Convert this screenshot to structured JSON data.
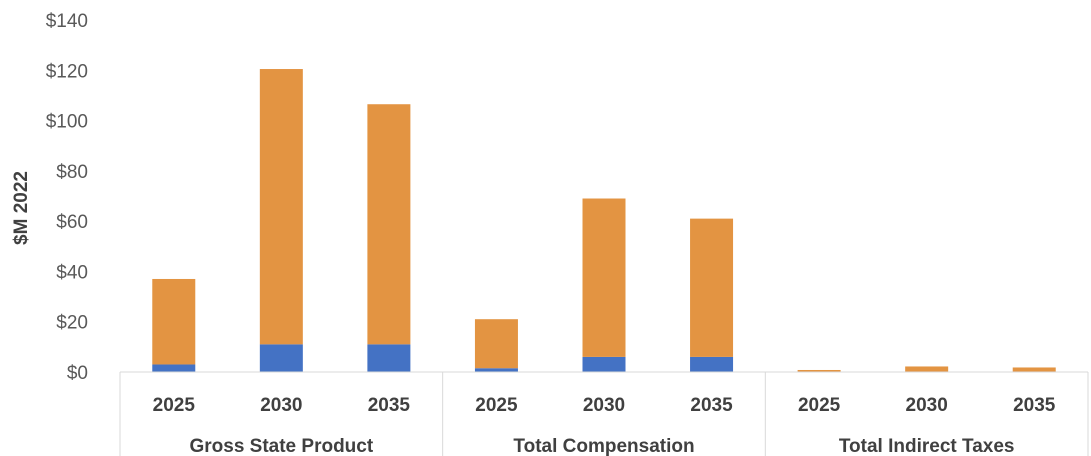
{
  "chart_data": {
    "type": "bar",
    "stacked": true,
    "ylabel": "$M 2022",
    "ylim": [
      0,
      140
    ],
    "y_ticks": [
      "$0",
      "$20",
      "$40",
      "$60",
      "$80",
      "$100",
      "$120",
      "$140"
    ],
    "y_tick_values": [
      0,
      20,
      40,
      60,
      80,
      100,
      120,
      140
    ],
    "grid": false,
    "groups": [
      "Gross State Product",
      "Total Compensation",
      "Total Indirect Taxes"
    ],
    "categories": [
      "2025",
      "2030",
      "2035",
      "2025",
      "2030",
      "2035",
      "2025",
      "2030",
      "2035"
    ],
    "series": [
      {
        "values": [
          3,
          11,
          11,
          1.5,
          6,
          6,
          0,
          0,
          0
        ],
        "color": "#4472C4"
      },
      {
        "values": [
          34,
          109.5,
          95.5,
          19.5,
          63,
          55,
          0.8,
          2.2,
          1.8
        ],
        "color": "#E39442"
      }
    ]
  }
}
